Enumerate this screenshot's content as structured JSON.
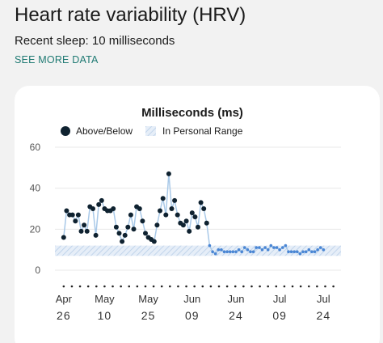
{
  "header": {
    "title": "Heart rate variability (HRV)",
    "subtitle": "Recent sleep: 10 milliseconds",
    "link_label": "SEE MORE DATA"
  },
  "colors": {
    "link": "#1f7a73",
    "point_dark": "#0f2230",
    "line_light": "#a9c9e8",
    "point_light": "#4a86d4",
    "range_band": "#dde8f4"
  },
  "chart_data": {
    "type": "line",
    "title": "Milliseconds (ms)",
    "legend": [
      {
        "label": "Above/Below",
        "icon": "dark-dot-icon"
      },
      {
        "label": "In Personal Range",
        "icon": "hatched-band-icon"
      }
    ],
    "legend_position": "top-left",
    "ylim": [
      0,
      60
    ],
    "y_ticks": [
      "60",
      "40",
      "20",
      "0"
    ],
    "y_tick_values": [
      60,
      40,
      20,
      0
    ],
    "x_tick_months": [
      "Apr",
      "May",
      "May",
      "Jun",
      "Jun",
      "Jul",
      "Jul"
    ],
    "x_tick_days": [
      "26",
      "10",
      "25",
      "09",
      "24",
      "09",
      "24"
    ],
    "x_tick_dates": [
      "2023-04-26",
      "2023-05-10",
      "2023-05-25",
      "2023-06-09",
      "2023-06-24",
      "2023-07-09",
      "2023-07-24"
    ],
    "x_range": [
      "2023-04-23",
      "2023-07-30"
    ],
    "grid": true,
    "personal_range": [
      7,
      12
    ],
    "series": [
      {
        "name": "Above/Below",
        "style": "dark",
        "points": [
          [
            "2023-04-26",
            16
          ],
          [
            "2023-04-27",
            29
          ],
          [
            "2023-04-28",
            27
          ],
          [
            "2023-04-29",
            27
          ],
          [
            "2023-04-30",
            24
          ],
          [
            "2023-05-01",
            27
          ],
          [
            "2023-05-02",
            19
          ],
          [
            "2023-05-03",
            22
          ],
          [
            "2023-05-04",
            19
          ],
          [
            "2023-05-05",
            31
          ],
          [
            "2023-05-06",
            30
          ],
          [
            "2023-05-07",
            17
          ],
          [
            "2023-05-08",
            32
          ],
          [
            "2023-05-09",
            34
          ],
          [
            "2023-05-10",
            30
          ],
          [
            "2023-05-11",
            29
          ],
          [
            "2023-05-12",
            29
          ],
          [
            "2023-05-13",
            30
          ],
          [
            "2023-05-14",
            21
          ],
          [
            "2023-05-15",
            18
          ],
          [
            "2023-05-16",
            14
          ],
          [
            "2023-05-17",
            17
          ],
          [
            "2023-05-18",
            21
          ],
          [
            "2023-05-19",
            27
          ],
          [
            "2023-05-20",
            20
          ],
          [
            "2023-05-21",
            31
          ],
          [
            "2023-05-22",
            30
          ],
          [
            "2023-05-23",
            24
          ],
          [
            "2023-05-24",
            18
          ],
          [
            "2023-05-25",
            16
          ],
          [
            "2023-05-26",
            15
          ],
          [
            "2023-05-27",
            14
          ],
          [
            "2023-05-28",
            22
          ],
          [
            "2023-05-29",
            29
          ],
          [
            "2023-05-30",
            35
          ],
          [
            "2023-05-31",
            27
          ],
          [
            "2023-06-01",
            47
          ],
          [
            "2023-06-02",
            30
          ],
          [
            "2023-06-03",
            34
          ],
          [
            "2023-06-04",
            27
          ],
          [
            "2023-06-05",
            23
          ],
          [
            "2023-06-06",
            22
          ],
          [
            "2023-06-07",
            24
          ],
          [
            "2023-06-08",
            19
          ],
          [
            "2023-06-09",
            28
          ],
          [
            "2023-06-10",
            26
          ],
          [
            "2023-06-11",
            21
          ],
          [
            "2023-06-12",
            33
          ],
          [
            "2023-06-13",
            30
          ],
          [
            "2023-06-14",
            23
          ]
        ]
      },
      {
        "name": "In Personal Range",
        "style": "light",
        "points": [
          [
            "2023-06-15",
            12
          ],
          [
            "2023-06-16",
            9
          ],
          [
            "2023-06-17",
            8
          ],
          [
            "2023-06-18",
            10
          ],
          [
            "2023-06-19",
            10
          ],
          [
            "2023-06-20",
            9
          ],
          [
            "2023-06-21",
            9
          ],
          [
            "2023-06-22",
            9
          ],
          [
            "2023-06-23",
            9
          ],
          [
            "2023-06-24",
            9
          ],
          [
            "2023-06-25",
            10
          ],
          [
            "2023-06-26",
            9
          ],
          [
            "2023-06-27",
            11
          ],
          [
            "2023-06-28",
            10
          ],
          [
            "2023-06-29",
            9
          ],
          [
            "2023-06-30",
            9
          ],
          [
            "2023-07-01",
            11
          ],
          [
            "2023-07-02",
            11
          ],
          [
            "2023-07-03",
            10
          ],
          [
            "2023-07-04",
            11
          ],
          [
            "2023-07-05",
            10
          ],
          [
            "2023-07-06",
            12
          ],
          [
            "2023-07-07",
            11
          ],
          [
            "2023-07-08",
            11
          ],
          [
            "2023-07-09",
            10
          ],
          [
            "2023-07-10",
            11
          ],
          [
            "2023-07-11",
            12
          ],
          [
            "2023-07-12",
            9
          ],
          [
            "2023-07-13",
            9
          ],
          [
            "2023-07-14",
            9
          ],
          [
            "2023-07-15",
            9
          ],
          [
            "2023-07-16",
            8
          ],
          [
            "2023-07-17",
            9
          ],
          [
            "2023-07-18",
            9
          ],
          [
            "2023-07-19",
            10
          ],
          [
            "2023-07-20",
            9
          ],
          [
            "2023-07-21",
            9
          ],
          [
            "2023-07-22",
            10
          ],
          [
            "2023-07-23",
            11
          ],
          [
            "2023-07-24",
            10
          ]
        ]
      }
    ]
  }
}
